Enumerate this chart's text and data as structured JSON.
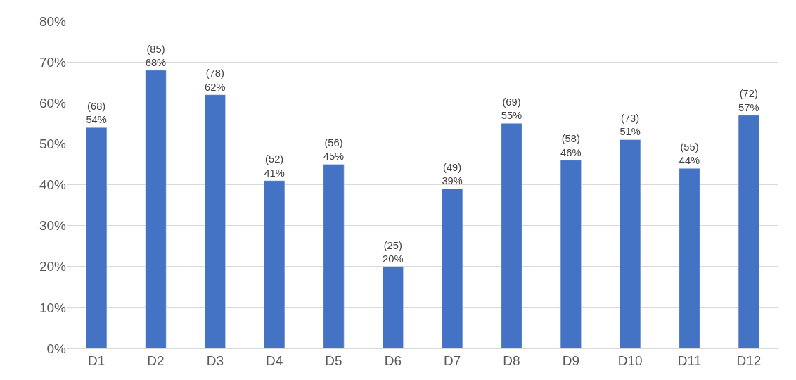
{
  "chart_data": {
    "type": "bar",
    "categories": [
      "D1",
      "D2",
      "D3",
      "D4",
      "D5",
      "D6",
      "D7",
      "D8",
      "D9",
      "D10",
      "D11",
      "D12"
    ],
    "values": [
      54,
      68,
      62,
      41,
      45,
      20,
      39,
      55,
      46,
      51,
      44,
      57
    ],
    "value_labels": [
      "(68)\n54%",
      "(85)\n68%",
      "(78)\n62%",
      "(52)\n41%",
      "(56)\n45%",
      "(25)\n20%",
      "(49)\n39%",
      "(69)\n55%",
      "(58)\n46%",
      "(73)\n51%",
      "(55)\n44%",
      "(72)\n57%"
    ],
    "color": "#4472c4",
    "ylim": [
      0,
      80
    ],
    "yticks": [
      {
        "value": 0,
        "label": "0%"
      },
      {
        "value": 10,
        "label": "10%"
      },
      {
        "value": 20,
        "label": "20%"
      },
      {
        "value": 30,
        "label": "30%"
      },
      {
        "value": 40,
        "label": "40%"
      },
      {
        "value": 50,
        "label": "50%"
      },
      {
        "value": 60,
        "label": "60%"
      },
      {
        "value": 70,
        "label": "70%"
      },
      {
        "value": 80,
        "label": "80%"
      }
    ],
    "grid": "y",
    "legend": false
  }
}
